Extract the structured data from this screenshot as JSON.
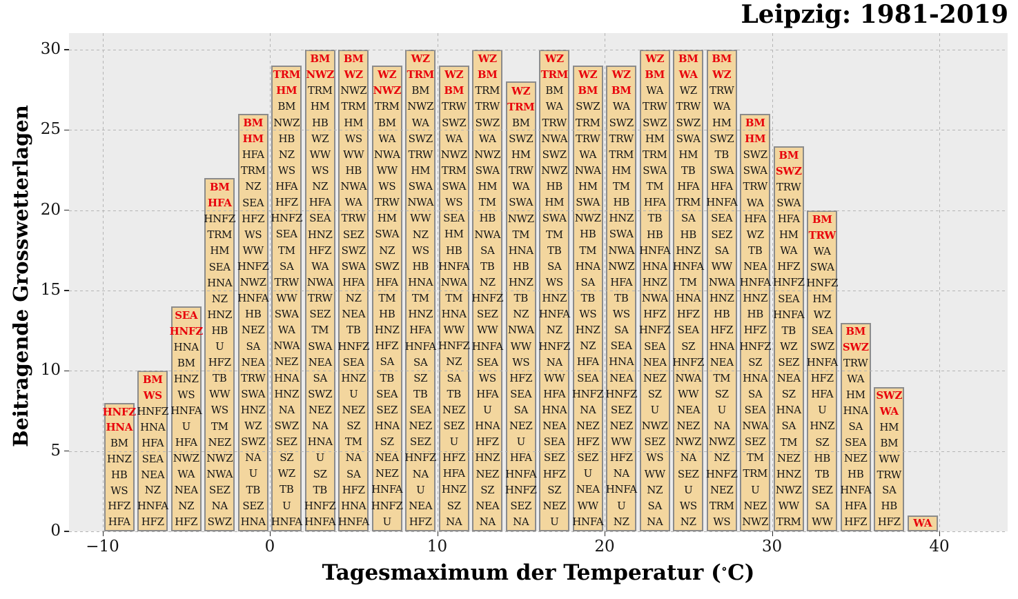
{
  "title": "Leipzig: 1981-2019",
  "ylabel": "Beitragende Grosswetterlagen",
  "xlabel": {
    "prefix": "Tagesmaximum der Temperatur (",
    "degree": "∘",
    "suffix": "C)"
  },
  "colors": {
    "bar_fill": "#f3d69e",
    "bar_edge": "#8b8b8b",
    "highlight_red": "#e8000b",
    "plot_background": "#ececec",
    "grid": "#b4b4b4",
    "text": "#141414"
  },
  "chart_data": {
    "type": "bar",
    "subtype": "stacked-categorical-text",
    "title": "Leipzig: 1981-2019",
    "xlabel": "Tagesmaximum der Temperatur (°C)",
    "ylabel": "Beitragende Grosswetterlagen",
    "grid": "dashed, on",
    "legend": "none",
    "xlim": [
      -12,
      44
    ],
    "ylim": [
      0,
      31
    ],
    "x_tick_values": [
      -10,
      0,
      10,
      20,
      30,
      40
    ],
    "x_tick_labels": [
      "−10",
      "0",
      "10",
      "20",
      "30",
      "40"
    ],
    "y_tick_values": [
      0,
      5,
      10,
      15,
      20,
      25,
      30
    ],
    "y_tick_labels": [
      "0",
      "5",
      "10",
      "15",
      "20",
      "25",
      "30"
    ],
    "bin_width_degC": 2,
    "note_red_top": "top entries of each bar are bold red",
    "bars": [
      {
        "t": -9,
        "count": 8,
        "red_top": 2,
        "gwl_top_to_bottom": [
          "HNFZ",
          "HNA",
          "BM",
          "HNZ",
          "HB",
          "WS",
          "HFZ",
          "HFA"
        ]
      },
      {
        "t": -7,
        "count": 10,
        "red_top": 2,
        "gwl_top_to_bottom": [
          "BM",
          "WS",
          "HNFZ",
          "HNA",
          "HFA",
          "SEA",
          "NEA",
          "NZ",
          "HNFA",
          "HFZ"
        ]
      },
      {
        "t": -5,
        "count": 14,
        "red_top": 2,
        "gwl_top_to_bottom": [
          "SEA",
          "HNFZ",
          "HNA",
          "BM",
          "HNZ",
          "WS",
          "HNFA",
          "U",
          "HFA",
          "NWZ",
          "WA",
          "NEA",
          "NZ",
          "HFZ"
        ]
      },
      {
        "t": -3,
        "count": 22,
        "red_top": 2,
        "gwl_top_to_bottom": [
          "BM",
          "HFA",
          "HNFZ",
          "TRM",
          "HM",
          "SEA",
          "HNA",
          "NZ",
          "HNZ",
          "HB",
          "U",
          "HFZ",
          "TB",
          "WW",
          "WS",
          "TM",
          "NEZ",
          "NWZ",
          "NWA",
          "SEZ",
          "NA",
          "SWZ"
        ]
      },
      {
        "t": -1,
        "count": 26,
        "red_top": 2,
        "gwl_top_to_bottom": [
          "BM",
          "HM",
          "HFA",
          "TRM",
          "NZ",
          "SEA",
          "HFZ",
          "WS",
          "WW",
          "HNFZ",
          "NWZ",
          "HNFA",
          "HB",
          "NEZ",
          "SA",
          "NEA",
          "TRW",
          "SWA",
          "HNZ",
          "WZ",
          "SWZ",
          "NA",
          "U",
          "TB",
          "SEZ",
          "HNA"
        ]
      },
      {
        "t": 1,
        "count": 29,
        "red_top": 2,
        "gwl_top_to_bottom": [
          "TRM",
          "HM",
          "BM",
          "NWZ",
          "HB",
          "NZ",
          "WS",
          "HFA",
          "HFZ",
          "HNFZ",
          "SEA",
          "TM",
          "SA",
          "TRW",
          "WW",
          "SWA",
          "WA",
          "NWA",
          "NEZ",
          "HNA",
          "HNZ",
          "NA",
          "SWZ",
          "SEZ",
          "SZ",
          "WZ",
          "TB",
          "U",
          "HNFA"
        ]
      },
      {
        "t": 3,
        "count": 30,
        "red_top": 2,
        "gwl_top_to_bottom": [
          "BM",
          "NWZ",
          "TRM",
          "HM",
          "HB",
          "WZ",
          "WW",
          "WS",
          "NZ",
          "HFA",
          "SEA",
          "HNZ",
          "HFZ",
          "WA",
          "NWA",
          "TRW",
          "SEZ",
          "TM",
          "SWA",
          "NEA",
          "SA",
          "SWZ",
          "NEZ",
          "NA",
          "HNA",
          "U",
          "SZ",
          "TB",
          "HNFZ",
          "HNFA"
        ]
      },
      {
        "t": 5,
        "count": 30,
        "red_top": 2,
        "gwl_top_to_bottom": [
          "BM",
          "WZ",
          "NWZ",
          "TRM",
          "HM",
          "WS",
          "WW",
          "HB",
          "NWA",
          "WA",
          "TRW",
          "SEZ",
          "SWZ",
          "SWA",
          "HFA",
          "NZ",
          "NEA",
          "TB",
          "HNFZ",
          "SEA",
          "HNZ",
          "U",
          "NEZ",
          "SZ",
          "TM",
          "NA",
          "SA",
          "HFZ",
          "HNA",
          "HNFA"
        ]
      },
      {
        "t": 7,
        "count": 29,
        "red_top": 2,
        "gwl_top_to_bottom": [
          "WZ",
          "NWZ",
          "TRM",
          "BM",
          "WA",
          "NWA",
          "WW",
          "WS",
          "TRW",
          "HM",
          "SWA",
          "NZ",
          "SWZ",
          "HFA",
          "TM",
          "HB",
          "HNZ",
          "HFZ",
          "SA",
          "TB",
          "SEA",
          "SEZ",
          "HNA",
          "SZ",
          "NEA",
          "NEZ",
          "HNFA",
          "HNFZ",
          "U"
        ]
      },
      {
        "t": 9,
        "count": 30,
        "red_top": 2,
        "gwl_top_to_bottom": [
          "WZ",
          "TRM",
          "BM",
          "NWZ",
          "WA",
          "SWZ",
          "TRW",
          "HM",
          "SWA",
          "NWA",
          "WW",
          "NZ",
          "WS",
          "HB",
          "HNA",
          "TM",
          "HNZ",
          "HFA",
          "HNFA",
          "SA",
          "SZ",
          "TB",
          "SEA",
          "NEZ",
          "SEZ",
          "HNFZ",
          "NA",
          "U",
          "NEA",
          "HFZ"
        ]
      },
      {
        "t": 11,
        "count": 29,
        "red_top": 2,
        "gwl_top_to_bottom": [
          "WZ",
          "BM",
          "TRW",
          "SWZ",
          "WA",
          "NWZ",
          "TRM",
          "SWA",
          "WS",
          "SEA",
          "HM",
          "HB",
          "HNFA",
          "NWA",
          "TM",
          "HNA",
          "WW",
          "HNFZ",
          "NZ",
          "SA",
          "TB",
          "NEZ",
          "SEZ",
          "U",
          "HFZ",
          "HFA",
          "HNZ",
          "SZ",
          "NA"
        ]
      },
      {
        "t": 13,
        "count": 30,
        "red_top": 2,
        "gwl_top_to_bottom": [
          "WZ",
          "BM",
          "TRM",
          "TRW",
          "SWZ",
          "WA",
          "NWZ",
          "SWA",
          "HM",
          "TM",
          "HB",
          "NWA",
          "SA",
          "TB",
          "NZ",
          "HNFZ",
          "SEZ",
          "WW",
          "HNFA",
          "SEA",
          "WS",
          "HFA",
          "U",
          "HNA",
          "HFZ",
          "HNZ",
          "NEZ",
          "SZ",
          "NEA",
          "NA"
        ]
      },
      {
        "t": 15,
        "count": 28,
        "red_top": 2,
        "gwl_top_to_bottom": [
          "WZ",
          "TRM",
          "BM",
          "SWZ",
          "HM",
          "TRW",
          "WA",
          "SWA",
          "NWZ",
          "TM",
          "HNA",
          "HB",
          "HNZ",
          "TB",
          "NZ",
          "NWA",
          "WW",
          "WS",
          "HFZ",
          "SEA",
          "SA",
          "NEZ",
          "U",
          "HFA",
          "HNFA",
          "HNFZ",
          "SEZ",
          "NA"
        ]
      },
      {
        "t": 17,
        "count": 30,
        "red_top": 2,
        "gwl_top_to_bottom": [
          "WZ",
          "TRM",
          "BM",
          "WA",
          "TRW",
          "NWA",
          "SWZ",
          "NWZ",
          "HB",
          "HM",
          "SWA",
          "TM",
          "TB",
          "SA",
          "WS",
          "HNZ",
          "HNFA",
          "NZ",
          "HNFZ",
          "NA",
          "WW",
          "HFA",
          "HNA",
          "NEA",
          "SEA",
          "SEZ",
          "HFZ",
          "SZ",
          "NEZ",
          "U"
        ]
      },
      {
        "t": 19,
        "count": 29,
        "red_top": 2,
        "gwl_top_to_bottom": [
          "WZ",
          "BM",
          "SWZ",
          "TRM",
          "TRW",
          "WA",
          "NWA",
          "HM",
          "SWA",
          "NWZ",
          "HB",
          "TM",
          "HNA",
          "SA",
          "TB",
          "WS",
          "HNZ",
          "NZ",
          "HFA",
          "SEA",
          "HNFZ",
          "NA",
          "NEZ",
          "HFZ",
          "SEZ",
          "U",
          "NEA",
          "WW",
          "HNFA"
        ]
      },
      {
        "t": 21,
        "count": 29,
        "red_top": 2,
        "gwl_top_to_bottom": [
          "WZ",
          "BM",
          "WA",
          "SWZ",
          "TRW",
          "TRM",
          "HM",
          "TM",
          "HB",
          "HNZ",
          "SWA",
          "NWA",
          "NWZ",
          "HFA",
          "TB",
          "WS",
          "SA",
          "SEA",
          "HNA",
          "NEA",
          "HNFZ",
          "SEZ",
          "NEZ",
          "WW",
          "HFZ",
          "NA",
          "HNFA",
          "U",
          "NZ"
        ]
      },
      {
        "t": 23,
        "count": 30,
        "red_top": 2,
        "gwl_top_to_bottom": [
          "WZ",
          "BM",
          "WA",
          "TRW",
          "SWZ",
          "HM",
          "TRM",
          "SWA",
          "TM",
          "HFA",
          "TB",
          "HB",
          "HNFA",
          "HNA",
          "HNZ",
          "NWA",
          "HFZ",
          "HNFZ",
          "SEA",
          "NEA",
          "NEZ",
          "SZ",
          "U",
          "NWZ",
          "SEZ",
          "WS",
          "WW",
          "NZ",
          "SA",
          "NA"
        ]
      },
      {
        "t": 25,
        "count": 30,
        "red_top": 2,
        "gwl_top_to_bottom": [
          "BM",
          "WA",
          "WZ",
          "TRW",
          "SWZ",
          "SWA",
          "HM",
          "TB",
          "HFA",
          "TRM",
          "SA",
          "HB",
          "HNZ",
          "HNFA",
          "TM",
          "HNA",
          "HFZ",
          "SEA",
          "SZ",
          "HNFZ",
          "NWA",
          "WW",
          "NEA",
          "NEZ",
          "NWZ",
          "NA",
          "SEZ",
          "U",
          "WS",
          "NZ"
        ]
      },
      {
        "t": 27,
        "count": 30,
        "red_top": 2,
        "gwl_top_to_bottom": [
          "BM",
          "WZ",
          "TRW",
          "WA",
          "HM",
          "SWZ",
          "TB",
          "SWA",
          "HFA",
          "HNFA",
          "SEA",
          "SEZ",
          "SA",
          "WW",
          "NWA",
          "HNZ",
          "HB",
          "HFZ",
          "HNA",
          "NEA",
          "TM",
          "SZ",
          "U",
          "NA",
          "NWZ",
          "NZ",
          "HNFZ",
          "NEZ",
          "TRM",
          "WS"
        ]
      },
      {
        "t": 29,
        "count": 26,
        "red_top": 2,
        "gwl_top_to_bottom": [
          "BM",
          "HM",
          "SWZ",
          "SWA",
          "TRW",
          "WA",
          "HFA",
          "WZ",
          "TB",
          "NEA",
          "HNFA",
          "HNZ",
          "HB",
          "HFZ",
          "HNFZ",
          "SZ",
          "HNA",
          "SA",
          "SEA",
          "NWA",
          "SEZ",
          "TM",
          "TRM",
          "U",
          "NEZ",
          "NWZ"
        ]
      },
      {
        "t": 31,
        "count": 24,
        "red_top": 2,
        "gwl_top_to_bottom": [
          "BM",
          "SWZ",
          "TRW",
          "SWA",
          "HFA",
          "HM",
          "WA",
          "HFZ",
          "HNFZ",
          "SEA",
          "HNFA",
          "TB",
          "WZ",
          "SEZ",
          "NEA",
          "SZ",
          "HNA",
          "SA",
          "TM",
          "NEZ",
          "HNZ",
          "NWZ",
          "WW",
          "TRM"
        ]
      },
      {
        "t": 33,
        "count": 20,
        "red_top": 2,
        "gwl_top_to_bottom": [
          "BM",
          "TRW",
          "WA",
          "SWA",
          "HNFZ",
          "HM",
          "WZ",
          "SEA",
          "SWZ",
          "HNFA",
          "HFZ",
          "HFA",
          "U",
          "HNZ",
          "SZ",
          "HB",
          "TB",
          "SEZ",
          "SA",
          "WW"
        ]
      },
      {
        "t": 35,
        "count": 13,
        "red_top": 2,
        "gwl_top_to_bottom": [
          "BM",
          "SWZ",
          "TRW",
          "WA",
          "HM",
          "HNA",
          "SA",
          "SEA",
          "NEZ",
          "HB",
          "HNFA",
          "HFA",
          "HFZ"
        ]
      },
      {
        "t": 37,
        "count": 9,
        "red_top": 2,
        "gwl_top_to_bottom": [
          "SWZ",
          "WA",
          "HM",
          "BM",
          "WW",
          "TRW",
          "SA",
          "HB",
          "HFZ"
        ]
      },
      {
        "t": 39,
        "count": 1,
        "red_top": 1,
        "gwl_top_to_bottom": [
          "WA"
        ]
      }
    ]
  }
}
